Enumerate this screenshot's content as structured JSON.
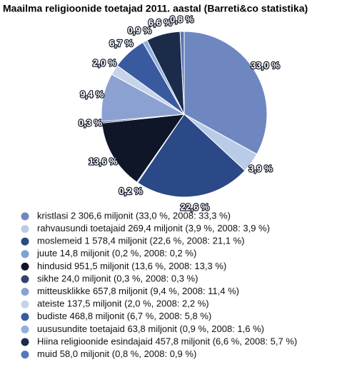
{
  "chart_data": {
    "type": "pie",
    "title": "Maailma religioonide toetajad 2011. aastal (Barreti&co statistika)",
    "categories": [
      "kristlasi 2 306,6 miljonit (33,0 %, 2008: 33,3 %)",
      "rahvausundi toetajaid 269,4 miljonit (3,9 %, 2008: 3,9 %)",
      "moslemeid 1 578,4 miljonit (22,6 %, 2008: 21,1 %)",
      "juute 14,8 miljonit (0,2 %, 2008: 0,2 %)",
      "hindusid 951,5 miljonit (13,6 %, 2008: 13,3 %)",
      "sikhe 24,0 miljonit (0,3 %, 2008: 0,3 %)",
      "mitteusklikke 657,8 miljonit (9,4 %, 2008: 11,4 %)",
      "ateiste 137,5 miljonit (2,0 %, 2008: 2,2 %)",
      "budiste 468,8 miljonit (6,7 %, 2008: 5,8 %)",
      "uususundite toetajaid 63,8 miljonit (0,9 %, 2008: 1,6 %)",
      "Hiina religioonide esindajaid 457,8 miljonit (6,6 %, 2008: 5,7 %)",
      "muid 58,0 miljonit (0,8 %, 2008: 0,9 %)"
    ],
    "values": [
      33.0,
      3.9,
      22.6,
      0.2,
      13.6,
      0.3,
      9.4,
      2.0,
      6.7,
      0.9,
      6.6,
      0.8
    ],
    "value_labels": [
      "33,0 %",
      "3,9 %",
      "22,6 %",
      "0,2 %",
      "13,6 %",
      "0,3 %",
      "9,4 %",
      "2,0 %",
      "6,7 %",
      "0,9 %",
      "6,6 %",
      "0,8 %"
    ],
    "colors": [
      "#6f87c0",
      "#b9cbe7",
      "#2b4887",
      "#7fa2d6",
      "#0e1628",
      "#30446e",
      "#8ba1d1",
      "#c5d4eb",
      "#3a5a9f",
      "#90b0df",
      "#1b2b4a",
      "#5777b9"
    ]
  }
}
